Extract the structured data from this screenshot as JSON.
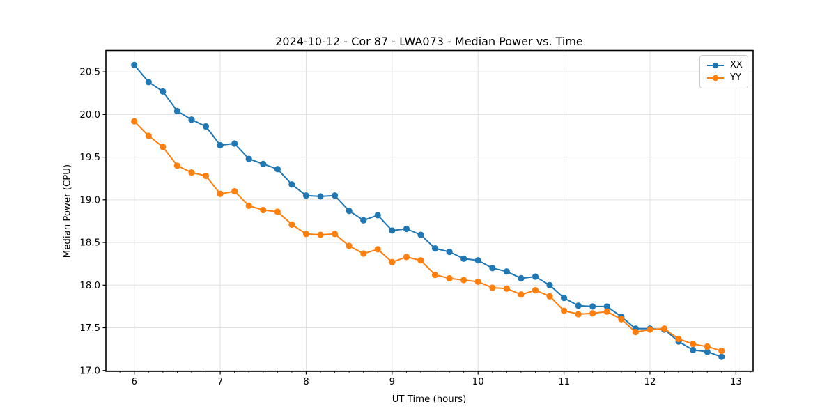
{
  "title": "2024-10-12 - Cor 87 - LWA073 - Median Power vs. Time",
  "chart_data": {
    "type": "line",
    "title": "2024-10-12 - Cor 87 - LWA073 - Median Power vs. Time",
    "xlabel": "UT Time (hours)",
    "ylabel": "Median Power (CPU)",
    "xlim": [
      5.67,
      13.2
    ],
    "ylim": [
      16.99,
      20.75
    ],
    "x_ticks": [
      6,
      7,
      8,
      9,
      10,
      11,
      12,
      13
    ],
    "y_ticks": [
      17.0,
      17.5,
      18.0,
      18.5,
      19.0,
      19.5,
      20.0,
      20.5
    ],
    "minor_x_tick_step": 0.1667,
    "grid": "major",
    "legend_position": "upper right",
    "marker": "o",
    "x": [
      6.0,
      6.167,
      6.333,
      6.5,
      6.667,
      6.833,
      7.0,
      7.167,
      7.333,
      7.5,
      7.667,
      7.833,
      8.0,
      8.167,
      8.333,
      8.5,
      8.667,
      8.833,
      9.0,
      9.167,
      9.333,
      9.5,
      9.667,
      9.833,
      10.0,
      10.167,
      10.333,
      10.5,
      10.667,
      10.833,
      11.0,
      11.167,
      11.333,
      11.5,
      11.667,
      11.833,
      12.0,
      12.167,
      12.333,
      12.5,
      12.667,
      12.833
    ],
    "series": [
      {
        "name": "XX",
        "color": "#1f77b4",
        "values": [
          20.58,
          20.38,
          20.27,
          20.04,
          19.94,
          19.86,
          19.64,
          19.66,
          19.48,
          19.42,
          19.36,
          19.18,
          19.05,
          19.04,
          19.05,
          18.87,
          18.76,
          18.82,
          18.64,
          18.66,
          18.59,
          18.43,
          18.39,
          18.31,
          18.29,
          18.2,
          18.16,
          18.08,
          18.1,
          18.0,
          17.85,
          17.76,
          17.75,
          17.75,
          17.63,
          17.49,
          17.49,
          17.48,
          17.34,
          17.24,
          17.22,
          17.16
        ]
      },
      {
        "name": "YY",
        "color": "#ff7f0e",
        "values": [
          19.92,
          19.75,
          19.62,
          19.4,
          19.32,
          19.28,
          19.07,
          19.1,
          18.93,
          18.88,
          18.86,
          18.71,
          18.6,
          18.59,
          18.6,
          18.46,
          18.37,
          18.42,
          18.27,
          18.33,
          18.29,
          18.12,
          18.08,
          18.06,
          18.04,
          17.97,
          17.96,
          17.89,
          17.94,
          17.87,
          17.7,
          17.66,
          17.67,
          17.69,
          17.6,
          17.45,
          17.48,
          17.49,
          17.37,
          17.31,
          17.28,
          17.23
        ]
      }
    ],
    "colors": {
      "grid": "#e0e0e0",
      "spine": "#000000",
      "background": "#ffffff"
    }
  }
}
